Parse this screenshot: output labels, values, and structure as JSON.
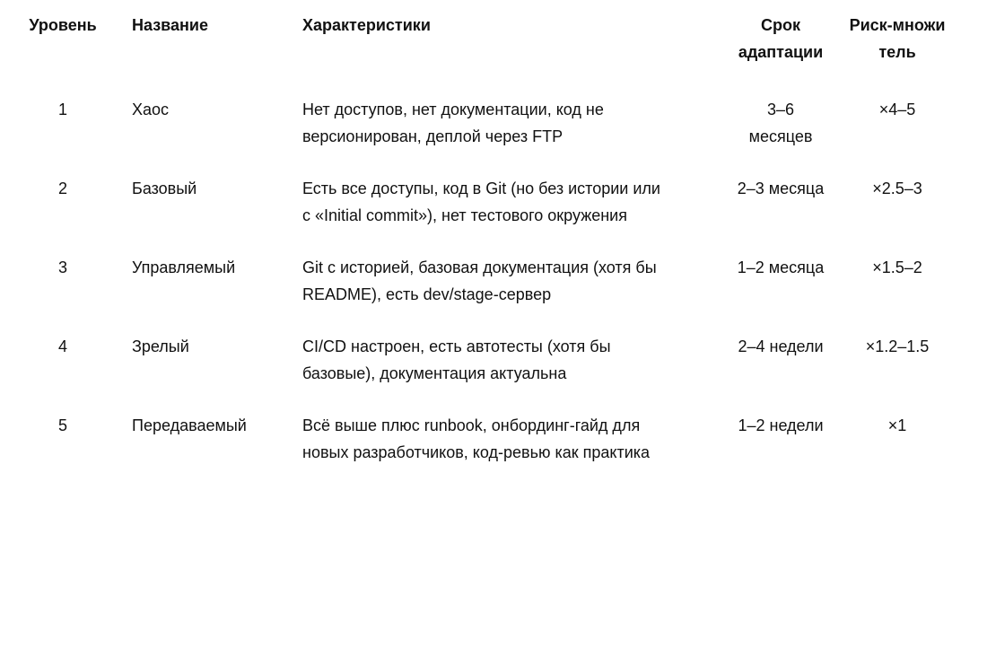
{
  "table": {
    "headers": {
      "level": "Уровень",
      "name": "Название",
      "characteristics": "Характеристики",
      "adaptation": "Срок адаптации",
      "risk": "Риск-множитель"
    },
    "rows": [
      {
        "level": "1",
        "name": "Хаос",
        "characteristics": "Нет доступов, нет документации, код не версионирован, деплой через FTP",
        "adaptation": "3–6 месяцев",
        "risk": "×4–5"
      },
      {
        "level": "2",
        "name": "Базовый",
        "characteristics": "Есть все доступы, код в Git (но без истории или с «Initial commit»), нет тестового окружения",
        "adaptation": "2–3 месяца",
        "risk": "×2.5–3"
      },
      {
        "level": "3",
        "name": "Управляемый",
        "characteristics": "Git с историей, базовая документация (хотя бы README), есть dev/stage-сервер",
        "adaptation": "1–2 месяца",
        "risk": "×1.5–2"
      },
      {
        "level": "4",
        "name": "Зрелый",
        "characteristics": "CI/CD настроен, есть автотесты (хотя бы базовые), документация актуальна",
        "adaptation": "2–4 недели",
        "risk": "×1.2–1.5"
      },
      {
        "level": "5",
        "name": "Передаваемый",
        "characteristics": "Всё выше плюс runbook, онбординг-гайд для новых разработчиков, код-ревью как практика",
        "adaptation": "1–2 недели",
        "risk": "×1"
      }
    ]
  }
}
